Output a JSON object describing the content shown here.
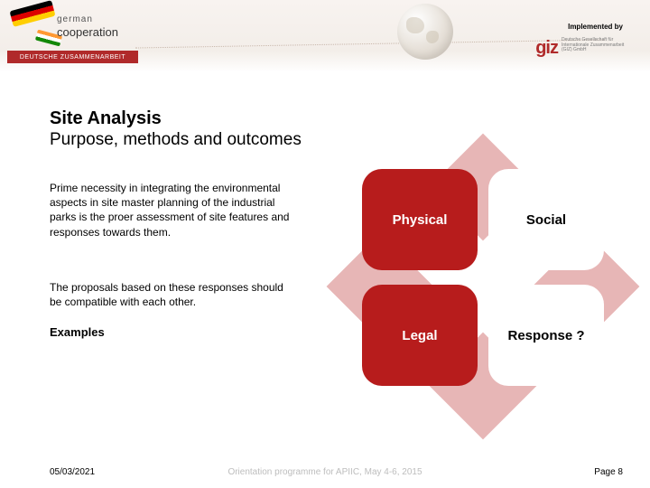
{
  "header": {
    "logo": {
      "line1": "german",
      "line2": "cooperation",
      "strip": "DEUTSCHE ZUSAMMENARBEIT"
    },
    "implemented_by_label": "Implemented by",
    "giz_logo_text": "giz",
    "giz_subtext": "Deutsche Gesellschaft für Internationale Zusammenarbeit (GIZ) GmbH"
  },
  "title": "Site Analysis",
  "subtitle": "Purpose, methods and outcomes",
  "para1": "Prime necessity in integrating the environmental aspects in site master planning of the industrial parks is the proer assessment of  site features and responses towards them.",
  "para2": "The proposals based on these responses should be compatible with each other.",
  "examples_label": "Examples",
  "quad": {
    "tl": "Physical",
    "tr": "Social",
    "bl": "Legal",
    "br": "Response ?",
    "box_red_bg": "#b71c1c",
    "box_white_bg": "#ffffff",
    "diamond_bg": "#e7b6b6"
  },
  "footer": {
    "date": "05/03/2021",
    "center": "Orientation programme for APIIC, May 4-6, 2015",
    "page": "Page 8"
  }
}
